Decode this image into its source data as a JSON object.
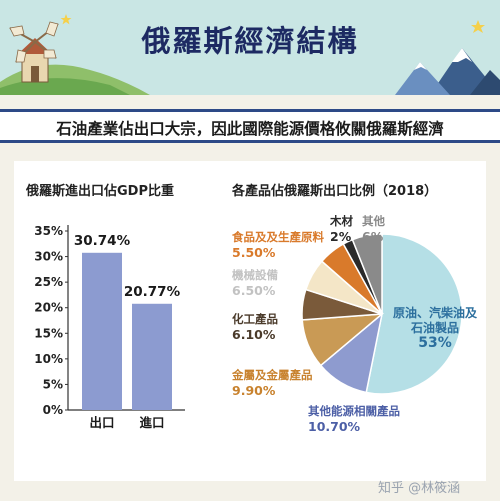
{
  "header": {
    "title": "俄羅斯經濟結構"
  },
  "subtitle": "石油產業佔出口大宗，因此國際能源價格攸關俄羅斯經濟",
  "watermark": "知乎 @林筱涵",
  "colors": {
    "header_bg": "#c9e6e4",
    "title": "#1d2a63",
    "bar": "#8c9bd0",
    "accent_rule": "#2d4a87"
  },
  "chart_data": [
    {
      "type": "bar",
      "title": "俄羅斯進出口佔GDP比重",
      "categories": [
        "出口",
        "進口"
      ],
      "values": [
        30.74,
        20.77
      ],
      "value_labels": [
        "30.74%",
        "20.77%"
      ],
      "yticks": [
        "0%",
        "5%",
        "10%",
        "15%",
        "20%",
        "25%",
        "30%",
        "35%"
      ],
      "ylim": [
        0,
        35
      ],
      "grid": false
    },
    {
      "type": "pie",
      "title": "各產品佔俄羅斯出口比例（2018）",
      "slices": [
        {
          "label": "原油、汽柴油及石油製品",
          "label_lines": [
            "原油、汽柴油及",
            "石油製品"
          ],
          "value": 53,
          "value_label": "53%",
          "color": "#b5dfe6",
          "label_color": "#2c6f9e"
        },
        {
          "label": "其他能源相關產品",
          "label_lines": [
            "其他能源相關產品"
          ],
          "value": 10.7,
          "value_label": "10.70%",
          "color": "#8e9bcf",
          "label_color": "#4c5fa6"
        },
        {
          "label": "金屬及金屬產品",
          "label_lines": [
            "金屬及金屬產品"
          ],
          "value": 9.9,
          "value_label": "9.90%",
          "color": "#c99a55",
          "label_color": "#c8822e"
        },
        {
          "label": "化工產品",
          "label_lines": [
            "化工產品"
          ],
          "value": 6.1,
          "value_label": "6.10%",
          "color": "#7a5a3a",
          "label_color": "#4a3a2a"
        },
        {
          "label": "機械設備",
          "label_lines": [
            "機械設備"
          ],
          "value": 6.5,
          "value_label": "6.50%",
          "color": "#f4e6c7",
          "label_color": "#c2c2c2"
        },
        {
          "label": "食品及及生產原料",
          "label_lines": [
            "食品及及生產原料"
          ],
          "value": 5.5,
          "value_label": "5.50%",
          "color": "#d97a2b",
          "label_color": "#d97a2b"
        },
        {
          "label": "木材",
          "label_lines": [
            "木材"
          ],
          "value": 2,
          "value_label": "2%",
          "color": "#2a2a2a",
          "label_color": "#2a2a2a"
        },
        {
          "label": "其他",
          "label_lines": [
            "其他"
          ],
          "value": 6,
          "value_label": "6%",
          "color": "#8a8a8a",
          "label_color": "#8a8a8a"
        }
      ]
    }
  ]
}
